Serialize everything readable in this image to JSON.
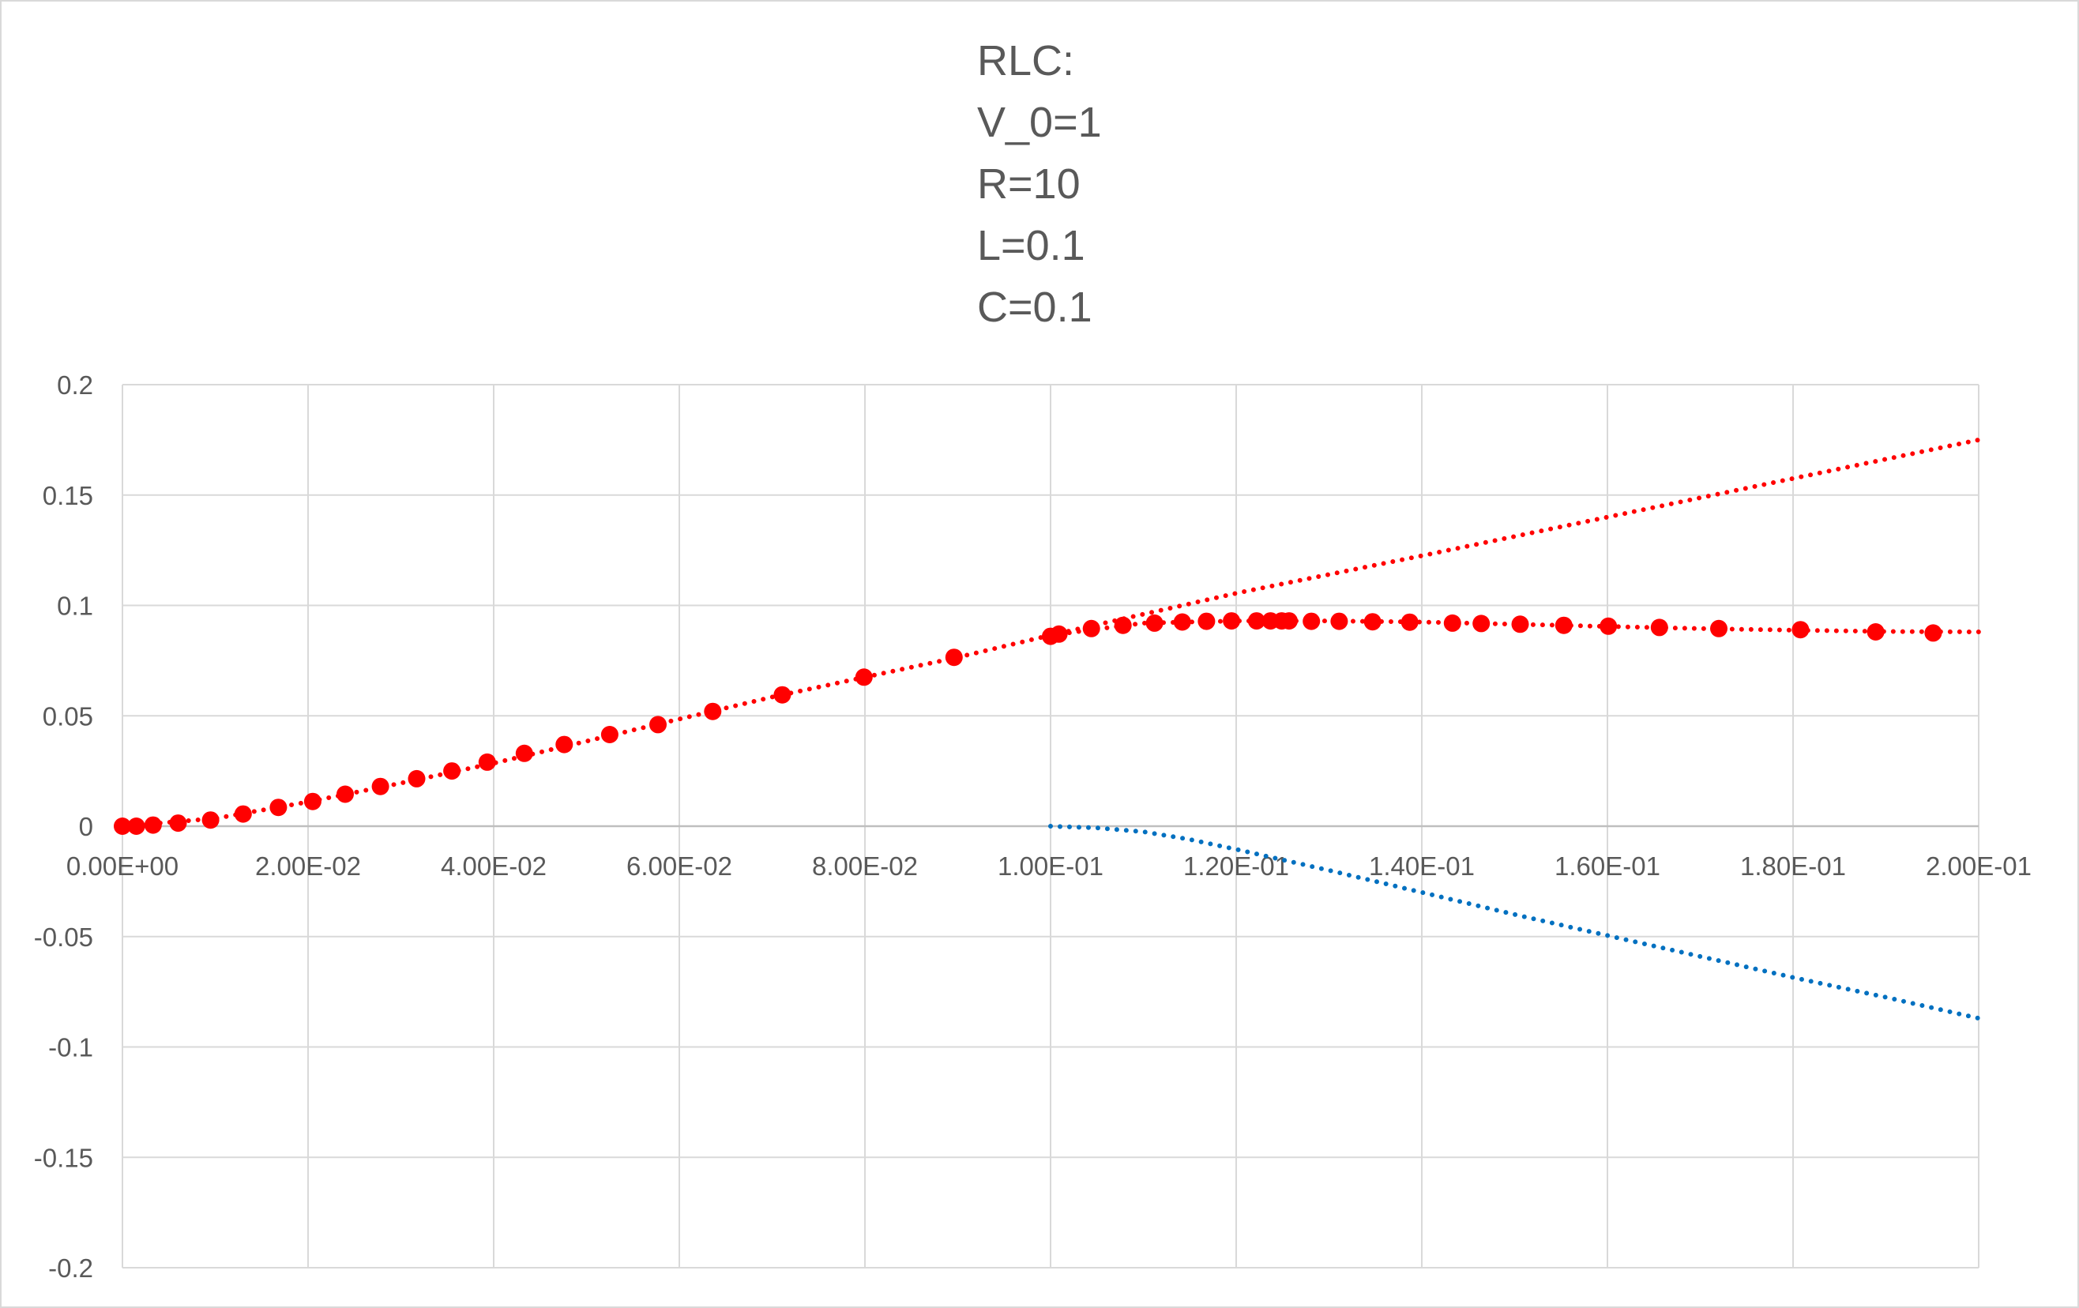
{
  "chart_data": {
    "type": "scatter",
    "title_lines": [
      "RLC:",
      "V_0=1",
      "R=10",
      "L=0.1",
      "C=0.1"
    ],
    "xlabel": "",
    "ylabel": "",
    "xlim": [
      0,
      0.2
    ],
    "ylim": [
      -0.2,
      0.2
    ],
    "x_ticks": [
      0,
      0.02,
      0.04,
      0.06,
      0.08,
      0.1,
      0.12,
      0.14,
      0.16,
      0.18,
      0.2
    ],
    "x_tick_labels": [
      "0.00E+00",
      "2.00E-02",
      "4.00E-02",
      "6.00E-02",
      "8.00E-02",
      "1.00E-01",
      "1.20E-01",
      "1.40E-01",
      "1.60E-01",
      "1.80E-01",
      "2.00E-01"
    ],
    "y_ticks": [
      0.2,
      0.15,
      0.1,
      0.05,
      0,
      -0.05,
      -0.1,
      -0.15,
      -0.2
    ],
    "y_tick_labels": [
      "0.2",
      "0.15",
      "0.1",
      "0.05",
      "0",
      "-0.05",
      "-0.1",
      "-0.15",
      "-0.2"
    ],
    "grid": true,
    "legend": "none",
    "series": [
      {
        "style": "markers",
        "color": "#ff0000",
        "x": [
          0,
          0.0015,
          0.0033,
          0.006,
          0.0095,
          0.013,
          0.0168,
          0.0205,
          0.024,
          0.0278,
          0.0317,
          0.0355,
          0.0393,
          0.0433,
          0.0476,
          0.0525,
          0.0577,
          0.0636,
          0.0711,
          0.0799,
          0.0896,
          0.1,
          0.1009,
          0.1044,
          0.1078,
          0.1112,
          0.1142,
          0.1168,
          0.1195,
          0.1222,
          0.1237,
          0.1249,
          0.1257,
          0.1281,
          0.1311,
          0.1347,
          0.1387,
          0.1433,
          0.1464,
          0.1506,
          0.1553,
          0.1601,
          0.1656,
          0.172,
          0.1808,
          0.1889,
          0.1951
        ],
        "y": [
          0,
          0,
          0.0005,
          0.0014,
          0.0028,
          0.0055,
          0.0085,
          0.0112,
          0.0145,
          0.018,
          0.0215,
          0.025,
          0.029,
          0.033,
          0.037,
          0.0415,
          0.046,
          0.052,
          0.0595,
          0.0675,
          0.0765,
          0.086,
          0.087,
          0.0895,
          0.091,
          0.092,
          0.0925,
          0.0928,
          0.093,
          0.093,
          0.093,
          0.093,
          0.093,
          0.0928,
          0.0928,
          0.0926,
          0.0924,
          0.092,
          0.0918,
          0.0915,
          0.091,
          0.0906,
          0.09,
          0.0895,
          0.089,
          0.088,
          0.0875
        ]
      },
      {
        "style": "dotted",
        "color": "#ff0000",
        "x": [
          0,
          0.01,
          0.02,
          0.03,
          0.04,
          0.05,
          0.06,
          0.07,
          0.08,
          0.09,
          0.1,
          0.12,
          0.14,
          0.16,
          0.18,
          0.2
        ],
        "y": [
          0,
          0.0035,
          0.011,
          0.0195,
          0.0285,
          0.0385,
          0.0485,
          0.0585,
          0.0675,
          0.0765,
          0.0865,
          0.1055,
          0.1225,
          0.14,
          0.1575,
          0.175
        ]
      },
      {
        "style": "dotted",
        "color": "#ff0000",
        "x": [
          0.1,
          0.11,
          0.12,
          0.13,
          0.14,
          0.15,
          0.16,
          0.17,
          0.18,
          0.19,
          0.2
        ],
        "y": [
          0.0865,
          0.092,
          0.093,
          0.093,
          0.0925,
          0.0915,
          0.0905,
          0.0895,
          0.0888,
          0.0882,
          0.088
        ]
      },
      {
        "style": "dotted",
        "color": "#0070c0",
        "x": [
          0.1,
          0.105,
          0.11,
          0.115,
          0.12,
          0.13,
          0.14,
          0.15,
          0.16,
          0.17,
          0.18,
          0.19,
          0.2
        ],
        "y": [
          0,
          -0.0008,
          -0.0025,
          -0.006,
          -0.0105,
          -0.02,
          -0.03,
          -0.04,
          -0.0495,
          -0.059,
          -0.0685,
          -0.0775,
          -0.087
        ]
      }
    ]
  }
}
